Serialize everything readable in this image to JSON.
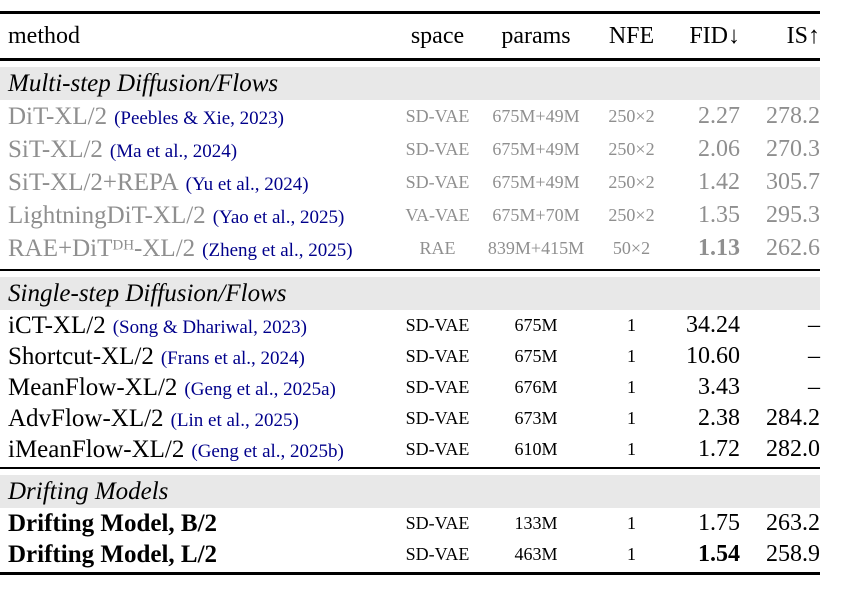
{
  "header": {
    "method": "method",
    "space": "space",
    "params": "params",
    "nfe": "NFE",
    "fid": "FID↓",
    "is": "IS↑"
  },
  "colors": {
    "muted_text": "#8f8f8f",
    "citation_navy": "#00008b",
    "section_band_bg": "#e8e8e8",
    "rule_black": "#000000"
  },
  "sections": [
    {
      "title": "Multi-step Diffusion/Flows",
      "muted": true,
      "rows": [
        {
          "method_prefix": "DiT-XL/2",
          "method_sup": "",
          "method_suffix": "",
          "cite": "(Peebles & Xie, 2023)",
          "space": "SD-VAE",
          "params": "675M+49M",
          "nfe": "250×2",
          "fid": "2.27",
          "fid_bold": false,
          "is": "278.2",
          "bold_method": false
        },
        {
          "method_prefix": "SiT-XL/2",
          "method_sup": "",
          "method_suffix": "",
          "cite": "(Ma et al., 2024)",
          "space": "SD-VAE",
          "params": "675M+49M",
          "nfe": "250×2",
          "fid": "2.06",
          "fid_bold": false,
          "is": "270.3",
          "bold_method": false
        },
        {
          "method_prefix": "SiT-XL/2+REPA",
          "method_sup": "",
          "method_suffix": "",
          "cite": "(Yu et al., 2024)",
          "space": "SD-VAE",
          "params": "675M+49M",
          "nfe": "250×2",
          "fid": "1.42",
          "fid_bold": false,
          "is": "305.7",
          "bold_method": false
        },
        {
          "method_prefix": "LightningDiT-XL/2",
          "method_sup": "",
          "method_suffix": "",
          "cite": "(Yao et al., 2025)",
          "space": "VA-VAE",
          "params": "675M+70M",
          "nfe": "250×2",
          "fid": "1.35",
          "fid_bold": false,
          "is": "295.3",
          "bold_method": false
        },
        {
          "method_prefix": "RAE+DiT",
          "method_sup": "DH",
          "method_suffix": "-XL/2",
          "cite": "(Zheng et al., 2025)",
          "space": "RAE",
          "params": "839M+415M",
          "nfe": "50×2",
          "fid": "1.13",
          "fid_bold": true,
          "is": "262.6",
          "bold_method": false
        }
      ]
    },
    {
      "title": "Single-step Diffusion/Flows",
      "muted": false,
      "rows": [
        {
          "method_prefix": "iCT-XL/2",
          "method_sup": "",
          "method_suffix": "",
          "cite": "(Song & Dhariwal, 2023)",
          "space": "SD-VAE",
          "params": "675M",
          "nfe": "1",
          "fid": "34.24",
          "fid_bold": false,
          "is": "–",
          "bold_method": false
        },
        {
          "method_prefix": "Shortcut-XL/2",
          "method_sup": "",
          "method_suffix": "",
          "cite": "(Frans et al., 2024)",
          "space": "SD-VAE",
          "params": "675M",
          "nfe": "1",
          "fid": "10.60",
          "fid_bold": false,
          "is": "–",
          "bold_method": false
        },
        {
          "method_prefix": "MeanFlow-XL/2",
          "method_sup": "",
          "method_suffix": "",
          "cite": "(Geng et al., 2025a)",
          "space": "SD-VAE",
          "params": "676M",
          "nfe": "1",
          "fid": "3.43",
          "fid_bold": false,
          "is": "–",
          "bold_method": false
        },
        {
          "method_prefix": "AdvFlow-XL/2",
          "method_sup": "",
          "method_suffix": "",
          "cite": "(Lin et al., 2025)",
          "space": "SD-VAE",
          "params": "673M",
          "nfe": "1",
          "fid": "2.38",
          "fid_bold": false,
          "is": "284.2",
          "bold_method": false
        },
        {
          "method_prefix": "iMeanFlow-XL/2",
          "method_sup": "",
          "method_suffix": "",
          "cite": "(Geng et al., 2025b)",
          "space": "SD-VAE",
          "params": "610M",
          "nfe": "1",
          "fid": "1.72",
          "fid_bold": false,
          "is": "282.0",
          "bold_method": false
        }
      ]
    },
    {
      "title": "Drifting Models",
      "muted": false,
      "rows": [
        {
          "method_prefix": "Drifting Model, B/2",
          "method_sup": "",
          "method_suffix": "",
          "cite": "",
          "space": "SD-VAE",
          "params": "133M",
          "nfe": "1",
          "fid": "1.75",
          "fid_bold": false,
          "is": "263.2",
          "bold_method": true
        },
        {
          "method_prefix": "Drifting Model, L/2",
          "method_sup": "",
          "method_suffix": "",
          "cite": "",
          "space": "SD-VAE",
          "params": "463M",
          "nfe": "1",
          "fid": "1.54",
          "fid_bold": true,
          "is": "258.9",
          "bold_method": true
        }
      ]
    }
  ]
}
